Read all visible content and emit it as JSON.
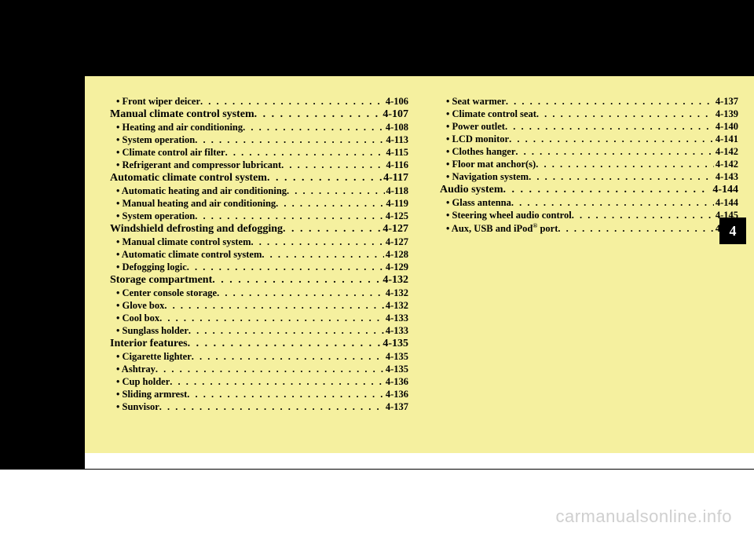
{
  "chapter_tab": "4",
  "watermark": "carmanualsonline.info",
  "col1": [
    {
      "type": "minor",
      "label": "• Front wiper deicer",
      "page": "4-106"
    },
    {
      "type": "major",
      "label": "Manual climate control system",
      "page": "4-107"
    },
    {
      "type": "minor",
      "label": "• Heating and air conditioning",
      "page": "4-108"
    },
    {
      "type": "minor",
      "label": "• System operation",
      "page": "4-113"
    },
    {
      "type": "minor",
      "label": "• Climate control air filter",
      "page": "4-115"
    },
    {
      "type": "minor",
      "label": "• Refrigerant and compressor lubricant",
      "page": "4-116"
    },
    {
      "type": "major",
      "label": "Automatic climate control system",
      "page": "4-117"
    },
    {
      "type": "minor",
      "label": "• Automatic heating and air conditioning",
      "page": "4-118"
    },
    {
      "type": "minor",
      "label": "• Manual heating and air conditioning",
      "page": "4-119"
    },
    {
      "type": "minor",
      "label": "• System operation",
      "page": "4-125"
    },
    {
      "type": "major",
      "label": "Windshield defrosting and defogging",
      "page": "4-127"
    },
    {
      "type": "minor",
      "label": "• Manual climate control system",
      "page": "4-127"
    },
    {
      "type": "minor",
      "label": "• Automatic climate control system",
      "page": "4-128"
    },
    {
      "type": "minor",
      "label": "• Defogging logic",
      "page": "4-129"
    },
    {
      "type": "major",
      "label": "Storage compartment",
      "page": "4-132"
    },
    {
      "type": "minor",
      "label": "• Center console storage",
      "page": "4-132"
    },
    {
      "type": "minor",
      "label": "• Glove box",
      "page": "4-132"
    },
    {
      "type": "minor",
      "label": "• Cool box",
      "page": "4-133"
    },
    {
      "type": "minor",
      "label": "• Sunglass holder",
      "page": "4-133"
    },
    {
      "type": "major",
      "label": "Interior features",
      "page": "4-135"
    },
    {
      "type": "minor",
      "label": "• Cigarette lighter",
      "page": "4-135"
    },
    {
      "type": "minor",
      "label": "• Ashtray",
      "page": "4-135"
    },
    {
      "type": "minor",
      "label": "• Cup holder",
      "page": "4-136"
    },
    {
      "type": "minor",
      "label": "• Sliding armrest",
      "page": "4-136"
    },
    {
      "type": "minor",
      "label": "• Sunvisor",
      "page": "4-137"
    }
  ],
  "col2": [
    {
      "type": "minor",
      "label": "• Seat warmer",
      "page": "4-137"
    },
    {
      "type": "minor",
      "label": "• Climate control seat",
      "page": "4-139"
    },
    {
      "type": "minor",
      "label": "• Power outlet",
      "page": "4-140"
    },
    {
      "type": "minor",
      "label": "• LCD monitor",
      "page": "4-141"
    },
    {
      "type": "minor",
      "label": "• Clothes hanger",
      "page": "4-142"
    },
    {
      "type": "minor",
      "label": "• Floor mat anchor(s)",
      "page": "4-142"
    },
    {
      "type": "minor",
      "label": "• Navigation system",
      "page": "4-143"
    },
    {
      "type": "major",
      "label": "Audio system",
      "page": "4-144"
    },
    {
      "type": "minor",
      "label": "• Glass antenna",
      "page": "4-144"
    },
    {
      "type": "minor",
      "label": "• Steering wheel audio control",
      "page": "4-145"
    },
    {
      "type": "minor",
      "label": "• Aux, USB and iPod® port",
      "page": "4-146",
      "ipod": true
    }
  ]
}
